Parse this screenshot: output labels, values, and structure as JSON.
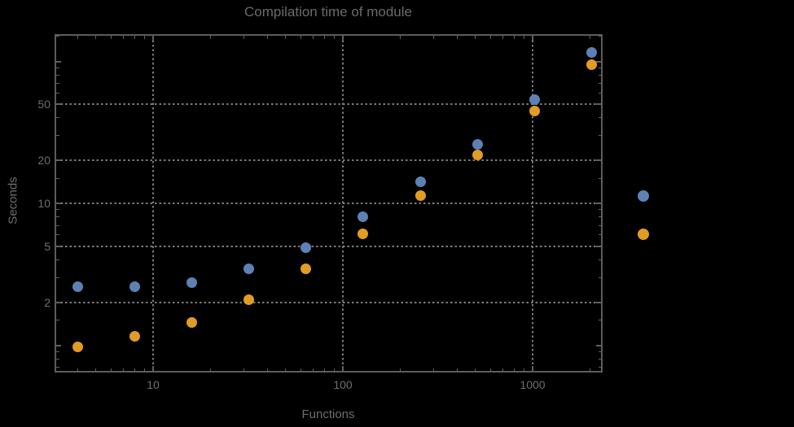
{
  "chart": {
    "title": "Compilation time of module",
    "xlabel": "Functions",
    "ylabel": "Seconds"
  },
  "colors": {
    "background": "#000000",
    "frame": "#5c5c5c",
    "grid": "#7b7b7b",
    "text": "#6e6e6e",
    "series_blue": "#5E81B5",
    "series_orange": "#E19C24"
  },
  "chart_data": {
    "type": "scatter",
    "x_scale": "log",
    "y_scale": "log",
    "title": "Compilation time of module",
    "xlabel": "Functions",
    "ylabel": "Seconds",
    "x": [
      4,
      8,
      16,
      32,
      64,
      128,
      256,
      512,
      1024,
      2048
    ],
    "series": [
      {
        "name": "blue",
        "color": "#5E81B5",
        "values": [
          2.6,
          2.6,
          2.75,
          3.45,
          4.9,
          8.0,
          14.1,
          26,
          54,
          115
        ]
      },
      {
        "name": "orange",
        "color": "#E19C24",
        "values": [
          0.97,
          1.15,
          1.45,
          2.1,
          3.45,
          6.1,
          11.3,
          22,
          45,
          95
        ]
      }
    ],
    "x_axis": {
      "labeled_ticks": [
        {
          "value": 10,
          "label": "10"
        },
        {
          "value": 100,
          "label": "100"
        },
        {
          "value": 1000,
          "label": "1000"
        }
      ],
      "minor_ticks": [
        4,
        5,
        6,
        7,
        8,
        9,
        20,
        30,
        40,
        50,
        60,
        70,
        80,
        90,
        200,
        300,
        400,
        500,
        600,
        700,
        800,
        900,
        2000
      ],
      "range": [
        3.05,
        2290
      ]
    },
    "y_axis": {
      "labeled_ticks": [
        {
          "value": 2,
          "label": "2"
        },
        {
          "value": 5,
          "label": "5"
        },
        {
          "value": 10,
          "label": "10"
        },
        {
          "value": 20,
          "label": "20"
        },
        {
          "value": 50,
          "label": "50"
        }
      ],
      "unlabeled_major_ticks": [
        1,
        100
      ],
      "minor_ticks": [
        0.7,
        0.8,
        0.9,
        1.5,
        3,
        4,
        6,
        7,
        8,
        9,
        15,
        30,
        40,
        60,
        70,
        80,
        90,
        150
      ],
      "range": [
        0.66,
        153
      ]
    },
    "gridlines": {
      "x": [
        10,
        100,
        1000
      ],
      "y": [
        2,
        5,
        10,
        20,
        50
      ]
    },
    "legend_position": "right-outside",
    "legend_markers": [
      {
        "name": "blue",
        "color": "#5E81B5"
      },
      {
        "name": "orange",
        "color": "#E19C24"
      }
    ]
  }
}
